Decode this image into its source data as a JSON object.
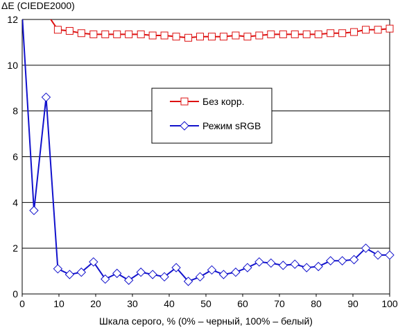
{
  "chart_data": {
    "type": "line",
    "ylabel": "ΔE (CIEDE2000)",
    "xlabel": "Шкала серого, % (0% – черный, 100% – белый)",
    "xlim": [
      0,
      100
    ],
    "ylim": [
      0,
      12
    ],
    "x_ticks": [
      0,
      10,
      20,
      30,
      40,
      50,
      60,
      70,
      80,
      90,
      100
    ],
    "y_ticks": [
      0,
      2,
      4,
      6,
      8,
      10,
      12
    ],
    "grid": "horizontal",
    "legend_position": "center",
    "series": [
      {
        "name": "Без корр.",
        "color": "#dd1111",
        "marker": "square",
        "x": [
          0,
          3.2,
          6.5,
          9.7,
          12.9,
          16.1,
          19.4,
          22.6,
          25.8,
          29.0,
          32.3,
          35.5,
          38.7,
          41.9,
          45.2,
          48.4,
          51.6,
          54.8,
          58.1,
          61.3,
          64.5,
          67.7,
          71.0,
          74.2,
          77.4,
          80.6,
          83.9,
          87.1,
          90.3,
          93.5,
          96.8,
          100
        ],
        "y": [
          12.6,
          12.2,
          12.3,
          11.55,
          11.5,
          11.4,
          11.35,
          11.35,
          11.35,
          11.35,
          11.35,
          11.3,
          11.3,
          11.25,
          11.2,
          11.25,
          11.25,
          11.25,
          11.3,
          11.25,
          11.3,
          11.35,
          11.35,
          11.35,
          11.35,
          11.35,
          11.4,
          11.4,
          11.45,
          11.55,
          11.55,
          11.6
        ]
      },
      {
        "name": "Режим sRGB",
        "color": "#1111cc",
        "marker": "diamond",
        "x": [
          0,
          3.2,
          6.5,
          9.7,
          12.9,
          16.1,
          19.4,
          22.6,
          25.8,
          29.0,
          32.3,
          35.5,
          38.7,
          41.9,
          45.2,
          48.4,
          51.6,
          54.8,
          58.1,
          61.3,
          64.5,
          67.7,
          71.0,
          74.2,
          77.4,
          80.6,
          83.9,
          87.1,
          90.3,
          93.5,
          96.8,
          100
        ],
        "y": [
          12.2,
          3.65,
          8.6,
          1.1,
          0.85,
          0.95,
          1.4,
          0.65,
          0.9,
          0.6,
          0.95,
          0.85,
          0.75,
          1.15,
          0.55,
          0.75,
          1.05,
          0.85,
          0.95,
          1.15,
          1.4,
          1.35,
          1.25,
          1.3,
          1.15,
          1.2,
          1.45,
          1.45,
          1.5,
          2.0,
          1.7,
          1.7
        ]
      }
    ]
  }
}
